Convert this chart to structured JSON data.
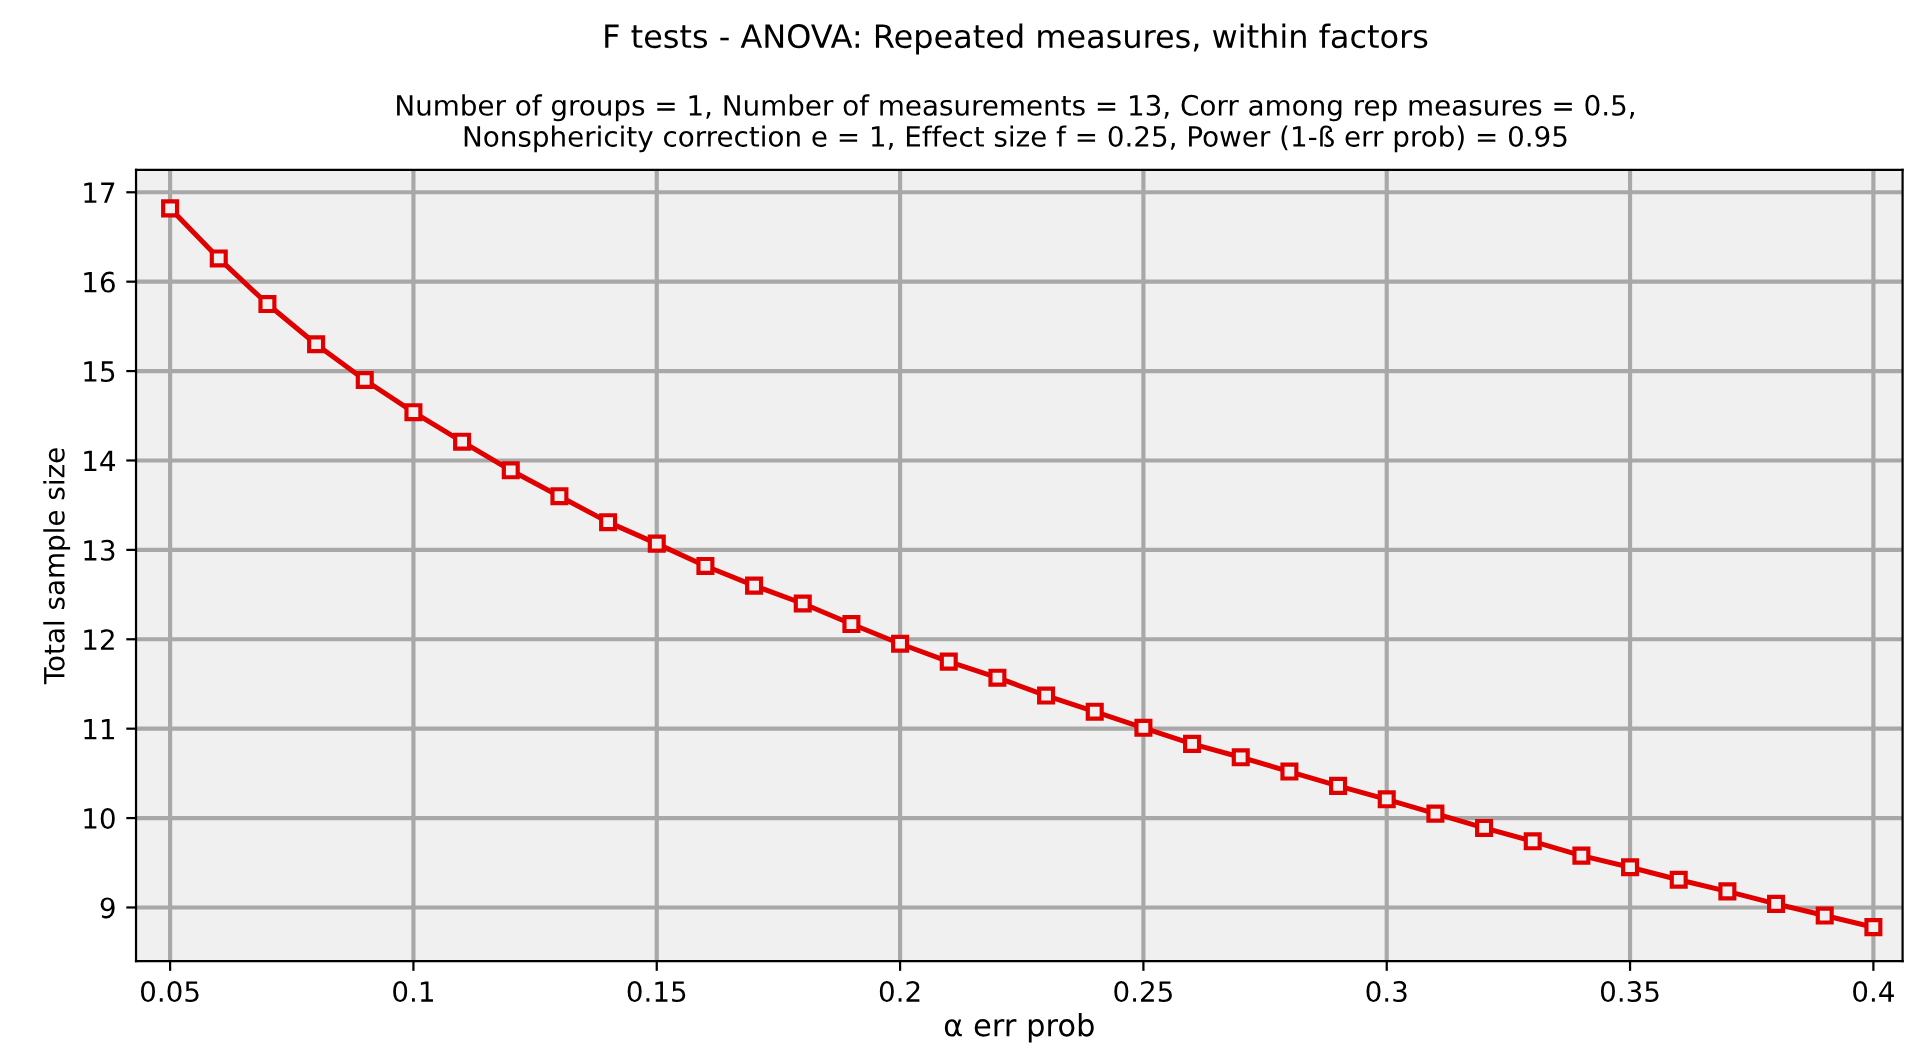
{
  "chart_data": {
    "type": "line",
    "title": "F tests - ANOVA: Repeated measures, within factors",
    "subtitle": "Number of groups = 1, Number of measurements = 13, Corr among rep measures = 0.5,\nNonsphericity correction e = 1, Effect size f = 0.25, Power (1-ß err prob) = 0.95",
    "xlabel": "α err prob",
    "ylabel": "Total sample size",
    "x": [
      0.05,
      0.06,
      0.07,
      0.08,
      0.09,
      0.1,
      0.11,
      0.12,
      0.13,
      0.14,
      0.15,
      0.16,
      0.17,
      0.18,
      0.19,
      0.2,
      0.21,
      0.22,
      0.23,
      0.24,
      0.25,
      0.26,
      0.27,
      0.28,
      0.29,
      0.3,
      0.31,
      0.32,
      0.33,
      0.34,
      0.35,
      0.36,
      0.37,
      0.38,
      0.39,
      0.4
    ],
    "series": [
      {
        "color": "#e00000",
        "values": [
          16.82,
          16.26,
          15.75,
          15.3,
          14.9,
          14.54,
          14.21,
          13.89,
          13.6,
          13.31,
          13.07,
          12.82,
          12.6,
          12.4,
          12.17,
          11.95,
          11.75,
          11.57,
          11.37,
          11.19,
          11.01,
          10.83,
          10.68,
          10.52,
          10.36,
          10.21,
          10.05,
          9.89,
          9.74,
          9.58,
          9.45,
          9.31,
          9.18,
          9.04,
          8.91,
          8.78
        ]
      }
    ],
    "xlim": [
      0.043,
      0.406
    ],
    "ylim": [
      8.4,
      17.25
    ],
    "xticks": [
      {
        "value": 0.05,
        "label": "0.05"
      },
      {
        "value": 0.1,
        "label": "0.1"
      },
      {
        "value": 0.15,
        "label": "0.15"
      },
      {
        "value": 0.2,
        "label": "0.2"
      },
      {
        "value": 0.25,
        "label": "0.25"
      },
      {
        "value": 0.3,
        "label": "0.3"
      },
      {
        "value": 0.35,
        "label": "0.35"
      },
      {
        "value": 0.4,
        "label": "0.4"
      }
    ],
    "yticks": [
      9,
      10,
      11,
      12,
      13,
      14,
      15,
      16,
      17
    ],
    "grid": true,
    "marker": "square",
    "line_style": "solid"
  }
}
